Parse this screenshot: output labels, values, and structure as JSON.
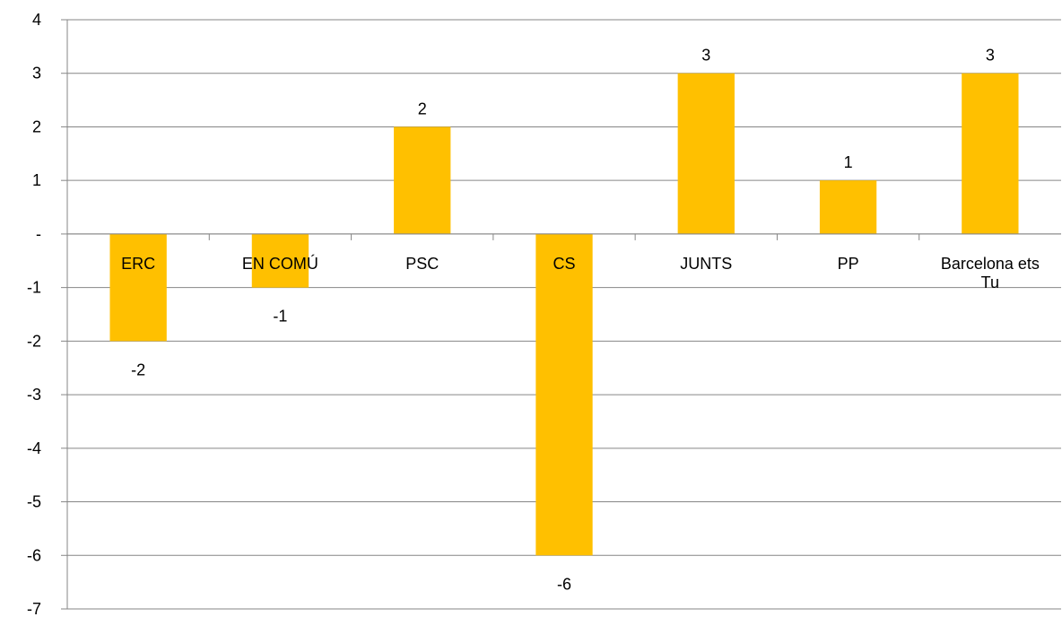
{
  "chart_data": {
    "type": "bar",
    "categories": [
      "ERC",
      "EN COMÚ",
      "PSC",
      "CS",
      "JUNTS",
      "PP",
      "Barcelona ets Tu"
    ],
    "category_lines": [
      [
        "ERC"
      ],
      [
        "EN COMÚ"
      ],
      [
        "PSC"
      ],
      [
        "CS"
      ],
      [
        "JUNTS"
      ],
      [
        "PP"
      ],
      [
        "Barcelona ets",
        "Tu"
      ]
    ],
    "values": [
      -2,
      -1,
      2,
      -6,
      3,
      1,
      3
    ],
    "data_labels": [
      "-2",
      "-1",
      "2",
      "-6",
      "3",
      "1",
      "3"
    ],
    "title": "",
    "xlabel": "",
    "ylabel": "",
    "ylim": [
      -7,
      4
    ],
    "yticks": [
      4,
      3,
      2,
      1,
      0,
      -1,
      -2,
      -3,
      -4,
      -5,
      -6,
      -7
    ],
    "ytick_labels": [
      "4",
      "3",
      "2",
      "1",
      "-",
      "-1",
      "-2",
      "-3",
      "-4",
      "-5",
      "-6",
      "-7"
    ],
    "grid": "horizontal",
    "legend": "none",
    "bar_color": "#FFC000",
    "grid_color": "#868686"
  }
}
